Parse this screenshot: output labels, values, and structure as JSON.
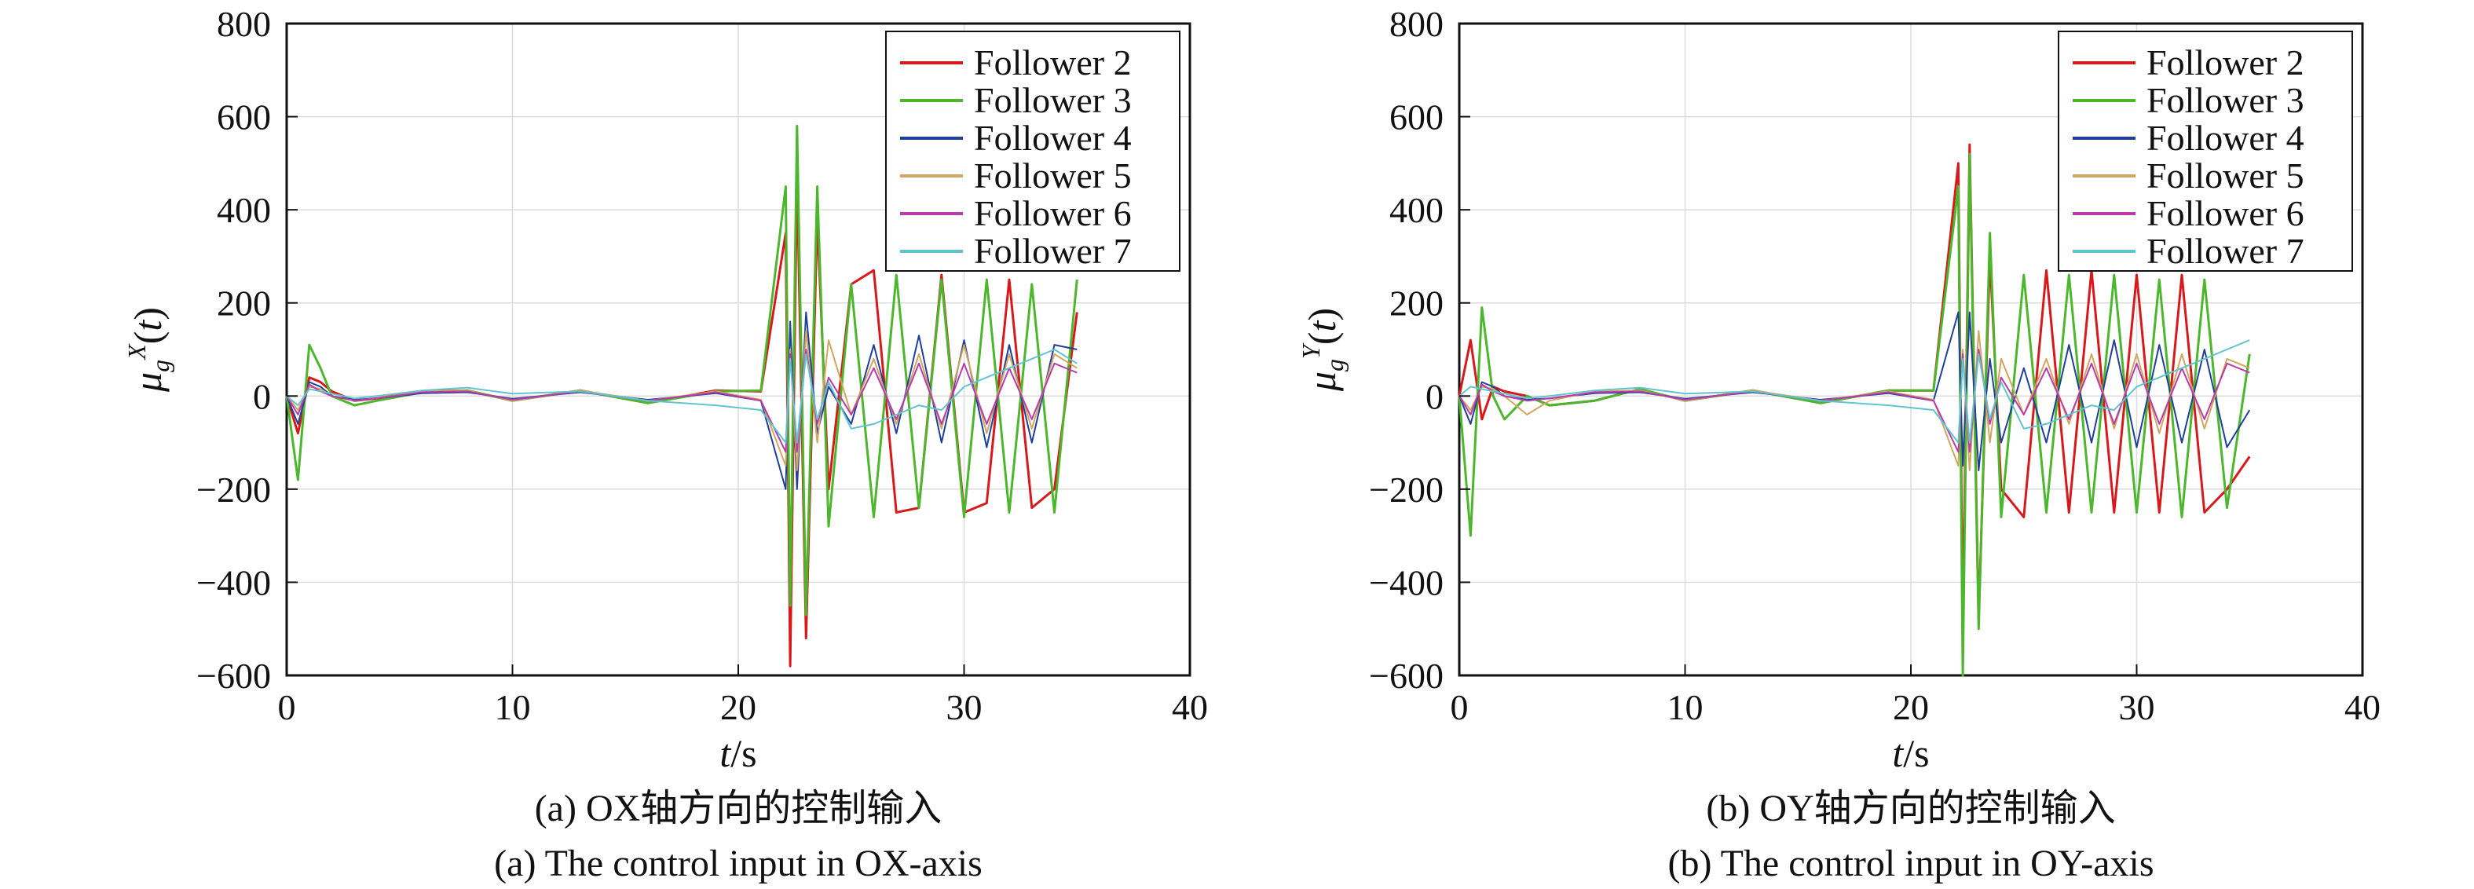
{
  "chart_data": [
    {
      "type": "line",
      "panel": "a",
      "x": [
        0,
        0.5,
        1,
        1.5,
        2,
        3,
        4,
        6,
        8,
        10,
        13,
        16,
        19,
        21,
        22.1,
        22.3,
        22.6,
        23,
        23.5,
        24,
        25,
        26,
        27,
        28,
        29,
        30,
        31,
        32,
        33,
        34,
        35
      ],
      "series": [
        {
          "name": "Follower 2",
          "color": "#d7191c",
          "width": 3,
          "values": [
            0,
            -80,
            40,
            30,
            10,
            -10,
            -5,
            10,
            12,
            -10,
            12,
            -15,
            12,
            10,
            350,
            -580,
            480,
            -520,
            380,
            -200,
            240,
            270,
            -250,
            -240,
            260,
            -250,
            -230,
            250,
            -240,
            -200,
            180
          ]
        },
        {
          "name": "Follower 3",
          "color": "#4cb62c",
          "width": 3,
          "values": [
            0,
            -180,
            110,
            60,
            0,
            -20,
            -10,
            8,
            12,
            -10,
            12,
            -15,
            10,
            12,
            450,
            -450,
            580,
            -470,
            450,
            -280,
            240,
            -260,
            260,
            -240,
            250,
            -260,
            250,
            -250,
            240,
            -250,
            250
          ]
        },
        {
          "name": "Follower 4",
          "color": "#1f3f99",
          "width": 2,
          "values": [
            0,
            -60,
            30,
            20,
            0,
            -8,
            -5,
            6,
            8,
            -6,
            8,
            -8,
            6,
            -10,
            -200,
            160,
            -200,
            180,
            -80,
            20,
            -60,
            110,
            -80,
            130,
            -100,
            120,
            -110,
            110,
            -100,
            110,
            100
          ]
        },
        {
          "name": "Follower 5",
          "color": "#d2a65f",
          "width": 2,
          "values": [
            0,
            -30,
            20,
            15,
            0,
            -10,
            -5,
            10,
            12,
            -10,
            12,
            -10,
            10,
            -8,
            -150,
            100,
            -160,
            140,
            -100,
            120,
            -40,
            80,
            -60,
            90,
            -70,
            110,
            -80,
            90,
            -70,
            90,
            60
          ]
        },
        {
          "name": "Follower 6",
          "color": "#b83bac",
          "width": 2,
          "values": [
            0,
            -40,
            25,
            10,
            0,
            -10,
            -5,
            8,
            10,
            -8,
            10,
            -10,
            8,
            -10,
            -120,
            90,
            -120,
            100,
            -60,
            40,
            -40,
            60,
            -50,
            70,
            -60,
            70,
            -60,
            60,
            -50,
            70,
            50
          ]
        },
        {
          "name": "Follower 7",
          "color": "#62c4cd",
          "width": 2,
          "values": [
            0,
            -20,
            15,
            10,
            5,
            -5,
            0,
            12,
            18,
            5,
            10,
            -10,
            -20,
            -30,
            -100,
            80,
            -100,
            90,
            -50,
            30,
            -70,
            -60,
            -40,
            -20,
            -30,
            20,
            40,
            60,
            80,
            100,
            70
          ]
        }
      ],
      "xlabel": "t/s",
      "ylabel": "μ_g^X(t)",
      "xlim": [
        0,
        40
      ],
      "ylim": [
        -600,
        800
      ],
      "xticks": [
        "0",
        "10",
        "20",
        "30",
        "40"
      ],
      "yticks": [
        "−600",
        "−400",
        "−200",
        "0",
        "200",
        "400",
        "600",
        "800"
      ],
      "grid": true,
      "legend": "top-right",
      "caption_zh": "(a) OX轴方向的控制输入",
      "caption_en": "(a) The control input in OX-axis"
    },
    {
      "type": "line",
      "panel": "b",
      "x": [
        0,
        0.5,
        1,
        1.5,
        2,
        3,
        4,
        6,
        8,
        10,
        13,
        16,
        19,
        21,
        22.1,
        22.3,
        22.6,
        23,
        23.5,
        24,
        25,
        26,
        27,
        28,
        29,
        30,
        31,
        32,
        33,
        34,
        35
      ],
      "series": [
        {
          "name": "Follower 2",
          "color": "#d7191c",
          "width": 3,
          "values": [
            0,
            120,
            -50,
            20,
            10,
            0,
            -20,
            -10,
            15,
            -10,
            12,
            -15,
            12,
            12,
            500,
            -500,
            540,
            -480,
            300,
            -200,
            -260,
            270,
            -250,
            270,
            -250,
            260,
            -250,
            260,
            -250,
            -200,
            -130
          ]
        },
        {
          "name": "Follower 3",
          "color": "#4cb62c",
          "width": 3,
          "values": [
            0,
            -300,
            190,
            0,
            -50,
            0,
            -20,
            -10,
            15,
            -10,
            12,
            -15,
            12,
            12,
            450,
            -600,
            520,
            -500,
            350,
            -260,
            260,
            -250,
            260,
            -250,
            260,
            -250,
            250,
            -260,
            250,
            -240,
            90
          ]
        },
        {
          "name": "Follower 4",
          "color": "#1f3f99",
          "width": 2,
          "values": [
            0,
            -60,
            30,
            20,
            0,
            -8,
            -5,
            6,
            8,
            -6,
            8,
            -8,
            6,
            -10,
            180,
            -150,
            180,
            -160,
            80,
            -100,
            60,
            -100,
            110,
            -100,
            120,
            -110,
            110,
            -100,
            100,
            -110,
            -30
          ]
        },
        {
          "name": "Follower 5",
          "color": "#d2a65f",
          "width": 2,
          "values": [
            0,
            -30,
            20,
            15,
            0,
            -40,
            -10,
            10,
            12,
            -10,
            12,
            -10,
            10,
            -8,
            -150,
            100,
            -160,
            140,
            -100,
            80,
            -40,
            80,
            -60,
            90,
            -70,
            90,
            -80,
            90,
            -70,
            80,
            60
          ]
        },
        {
          "name": "Follower 6",
          "color": "#b83bac",
          "width": 2,
          "values": [
            0,
            -40,
            25,
            10,
            0,
            -10,
            -5,
            8,
            10,
            -8,
            10,
            -10,
            8,
            -10,
            -120,
            90,
            -120,
            100,
            -60,
            40,
            -40,
            60,
            -50,
            70,
            -60,
            70,
            -60,
            60,
            -50,
            70,
            50
          ]
        },
        {
          "name": "Follower 7",
          "color": "#62c4cd",
          "width": 2,
          "values": [
            0,
            20,
            15,
            10,
            5,
            -5,
            0,
            12,
            18,
            5,
            10,
            -10,
            -20,
            -30,
            -100,
            80,
            -100,
            90,
            -50,
            30,
            -70,
            -60,
            -40,
            -20,
            -30,
            20,
            40,
            60,
            80,
            100,
            120
          ]
        }
      ],
      "xlabel": "t/s",
      "ylabel": "μ_g^Y(t)",
      "xlim": [
        0,
        40
      ],
      "ylim": [
        -600,
        800
      ],
      "xticks": [
        "0",
        "10",
        "20",
        "30",
        "40"
      ],
      "yticks": [
        "−600",
        "−400",
        "−200",
        "0",
        "200",
        "400",
        "600",
        "800"
      ],
      "grid": true,
      "legend": "top-right",
      "caption_zh": "(b) OY轴方向的控制输入",
      "caption_en": "(b) The control input in OY-axis"
    }
  ]
}
